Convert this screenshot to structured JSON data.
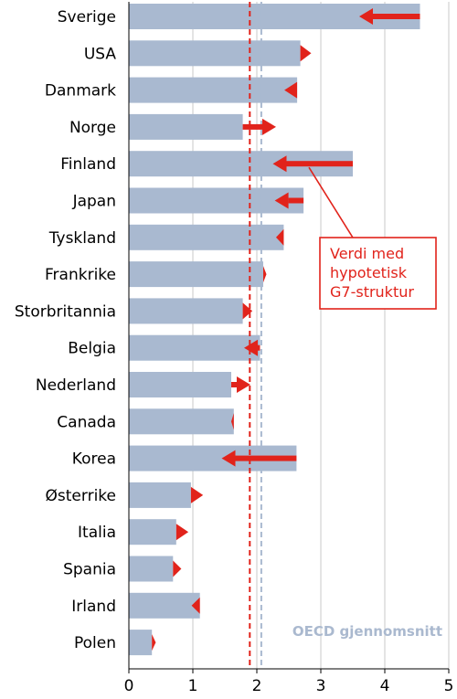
{
  "colors": {
    "bar": "#a9b9d0",
    "arrow": "#e1231b",
    "grid": "#c8c8c8",
    "oecd_line": "#a9b9d0",
    "hypo_line": "#e1231b",
    "oecd_text": "#aab9cf"
  },
  "chart_data": {
    "type": "bar",
    "orientation": "horizontal",
    "categories": [
      "Sverige",
      "USA",
      "Danmark",
      "Norge",
      "Finland",
      "Japan",
      "Tyskland",
      "Frankrike",
      "Storbritannia",
      "Belgia",
      "Nederland",
      "Canada",
      "Korea",
      "Østerrike",
      "Italia",
      "Spania",
      "Irland",
      "Polen"
    ],
    "series": [
      {
        "values": [
          4.55,
          2.68,
          2.63,
          1.78,
          3.5,
          2.73,
          2.42,
          2.1,
          1.78,
          2.05,
          1.6,
          1.64,
          2.62,
          0.97,
          0.74,
          0.69,
          1.11,
          0.36
        ]
      },
      {
        "values": [
          3.6,
          2.85,
          2.43,
          2.3,
          2.25,
          2.28,
          2.3,
          2.15,
          1.93,
          1.8,
          1.9,
          1.6,
          1.45,
          1.16,
          0.93,
          0.82,
          0.98,
          0.42
        ]
      }
    ],
    "xlim": [
      0,
      5
    ],
    "xticks": [
      0,
      1,
      2,
      3,
      4,
      5
    ],
    "xtick_labels": [
      "0",
      "1",
      "2",
      "3",
      "4",
      "5"
    ],
    "grid": true,
    "reference_lines": [
      {
        "value": 2.07,
        "style": "dashed",
        "color": "#a9b9d0",
        "label": "OECD gjennomsnitt"
      },
      {
        "value": 1.89,
        "style": "dashed",
        "color": "#e1231b"
      }
    ],
    "annotations": [
      {
        "lines": [
          "Verdi med",
          "hypotetisk",
          "G7-struktur"
        ],
        "points_to": "Finland"
      }
    ]
  }
}
